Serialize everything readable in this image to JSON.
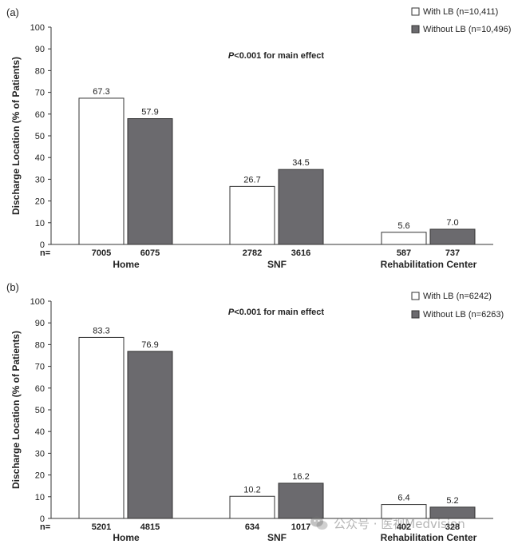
{
  "chart_data": [
    {
      "type": "bar",
      "panel_label": "(a)",
      "ylabel": "Discharge Location (% of Patients)",
      "ylim": [
        0,
        100
      ],
      "yticks": [
        0,
        10,
        20,
        30,
        40,
        50,
        60,
        70,
        80,
        90,
        100
      ],
      "annotation_p": "P",
      "annotation_rest": "<0.001 for main effect",
      "n_label": "n=",
      "categories": [
        "Home",
        "SNF",
        "Rehabilitation Center"
      ],
      "series": [
        {
          "name": "With LB (n=10,411)",
          "values": [
            67.3,
            26.7,
            5.6
          ],
          "value_labels": [
            "67.3",
            "26.7",
            "5.6"
          ],
          "n": [
            "7005",
            "2782",
            "587"
          ],
          "color": "#ffffff"
        },
        {
          "name": "Without LB (n=10,496)",
          "values": [
            57.9,
            34.5,
            7.0
          ],
          "value_labels": [
            "57.9",
            "34.5",
            "7.0"
          ],
          "n": [
            "6075",
            "3616",
            "737"
          ],
          "color": "#6b6a6e"
        }
      ],
      "legend": "top-right",
      "grid": false
    },
    {
      "type": "bar",
      "panel_label": "(b)",
      "ylabel": "Discharge Location (% of Patients)",
      "ylim": [
        0,
        100
      ],
      "yticks": [
        0,
        10,
        20,
        30,
        40,
        50,
        60,
        70,
        80,
        90,
        100
      ],
      "annotation_p": "P",
      "annotation_rest": "<0.001 for main effect",
      "n_label": "n=",
      "categories": [
        "Home",
        "SNF",
        "Rehabilitation Center"
      ],
      "series": [
        {
          "name": "With LB (n=6242)",
          "values": [
            83.3,
            10.2,
            6.4
          ],
          "value_labels": [
            "83.3",
            "10.2",
            "6.4"
          ],
          "n": [
            "5201",
            "634",
            "402"
          ],
          "color": "#ffffff"
        },
        {
          "name": "Without LB (n=6263)",
          "values": [
            76.9,
            16.2,
            5.2
          ],
          "value_labels": [
            "76.9",
            "16.2",
            "5.2"
          ],
          "n": [
            "4815",
            "1017",
            "328"
          ],
          "color": "#6b6a6e"
        }
      ],
      "legend": "top-right",
      "grid": false
    }
  ],
  "watermark": {
    "text": "公众号 · 医视Medvision",
    "icon": "wechat-icon"
  }
}
